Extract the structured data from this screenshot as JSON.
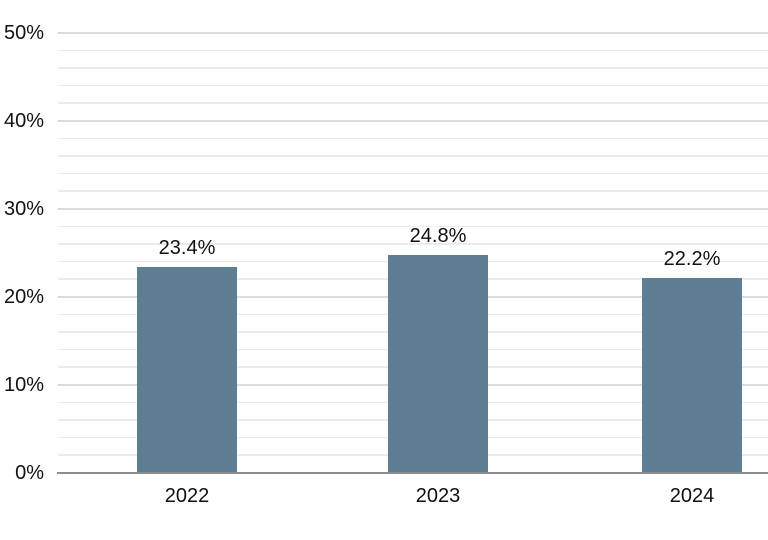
{
  "chart_data": {
    "type": "bar",
    "title": "",
    "categories": [
      "2022",
      "2023",
      "2024"
    ],
    "values": [
      23.4,
      24.8,
      22.2
    ],
    "value_labels": [
      "23.4%",
      "24.8%",
      "22.2%"
    ],
    "series_name": "",
    "xlabel": "",
    "ylabel": "",
    "ylim": [
      0,
      50
    ],
    "y_major_ticks": [
      {
        "value": 50,
        "label": "50%"
      },
      {
        "value": 40,
        "label": "40%"
      },
      {
        "value": 30,
        "label": "30%"
      },
      {
        "value": 20,
        "label": "20%"
      },
      {
        "value": 10,
        "label": "10%"
      },
      {
        "value": 0,
        "label": "0%"
      }
    ],
    "y_major_step": 10,
    "y_minor_step": 2,
    "grid": "horizontal major and minor gridlines on",
    "legend": "none",
    "colors": {
      "bar_fill": "#5d7e93",
      "axis_line": "#8c8c8c",
      "major_gridline": "#dcdcdc",
      "minor_gridline": "#ebebeb",
      "label_text": "#111111",
      "background": "#ffffff"
    }
  }
}
